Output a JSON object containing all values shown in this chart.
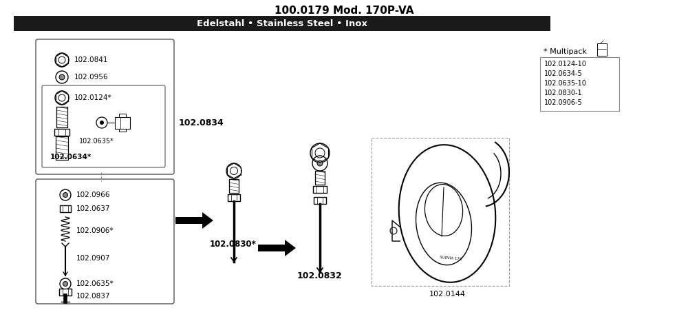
{
  "title": "100.0179 Mod. 170P-VA",
  "subtitle": "Edelstahl • Stainless Steel • Inox",
  "subtitle_bg": "#1a1a1a",
  "subtitle_color": "#ffffff",
  "bg_color": "#ffffff",
  "multipack_label": "* Multipack",
  "multipack_items": [
    "102.0124-10",
    "102.0634-5",
    "102.0635-10",
    "102.0830-1",
    "102.0906-5"
  ],
  "box1_assembly": "102.0834",
  "assembly1_label": "102.0830*",
  "assembly2_label": "102.0832",
  "trough_label": "102.0144",
  "label_0841": "102.0841",
  "label_0956": "102.0956",
  "label_0124": "102.0124*",
  "label_0635a": "102.0635*",
  "label_0634": "102.0634*",
  "label_0966": "102.0966",
  "label_0637": "102.0637",
  "label_0906": "102.0906*",
  "label_0907": "102.0907",
  "label_0635b": "102.0635*",
  "label_0837": "102.0837"
}
